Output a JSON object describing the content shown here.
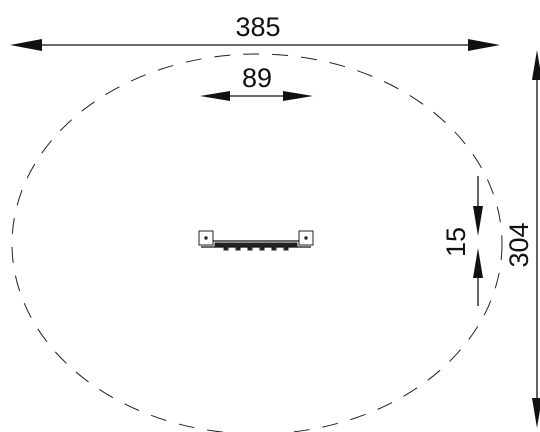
{
  "dimensions": {
    "overall_width": "385",
    "equipment_length": "89",
    "equipment_depth": "15",
    "overall_depth": "304"
  }
}
